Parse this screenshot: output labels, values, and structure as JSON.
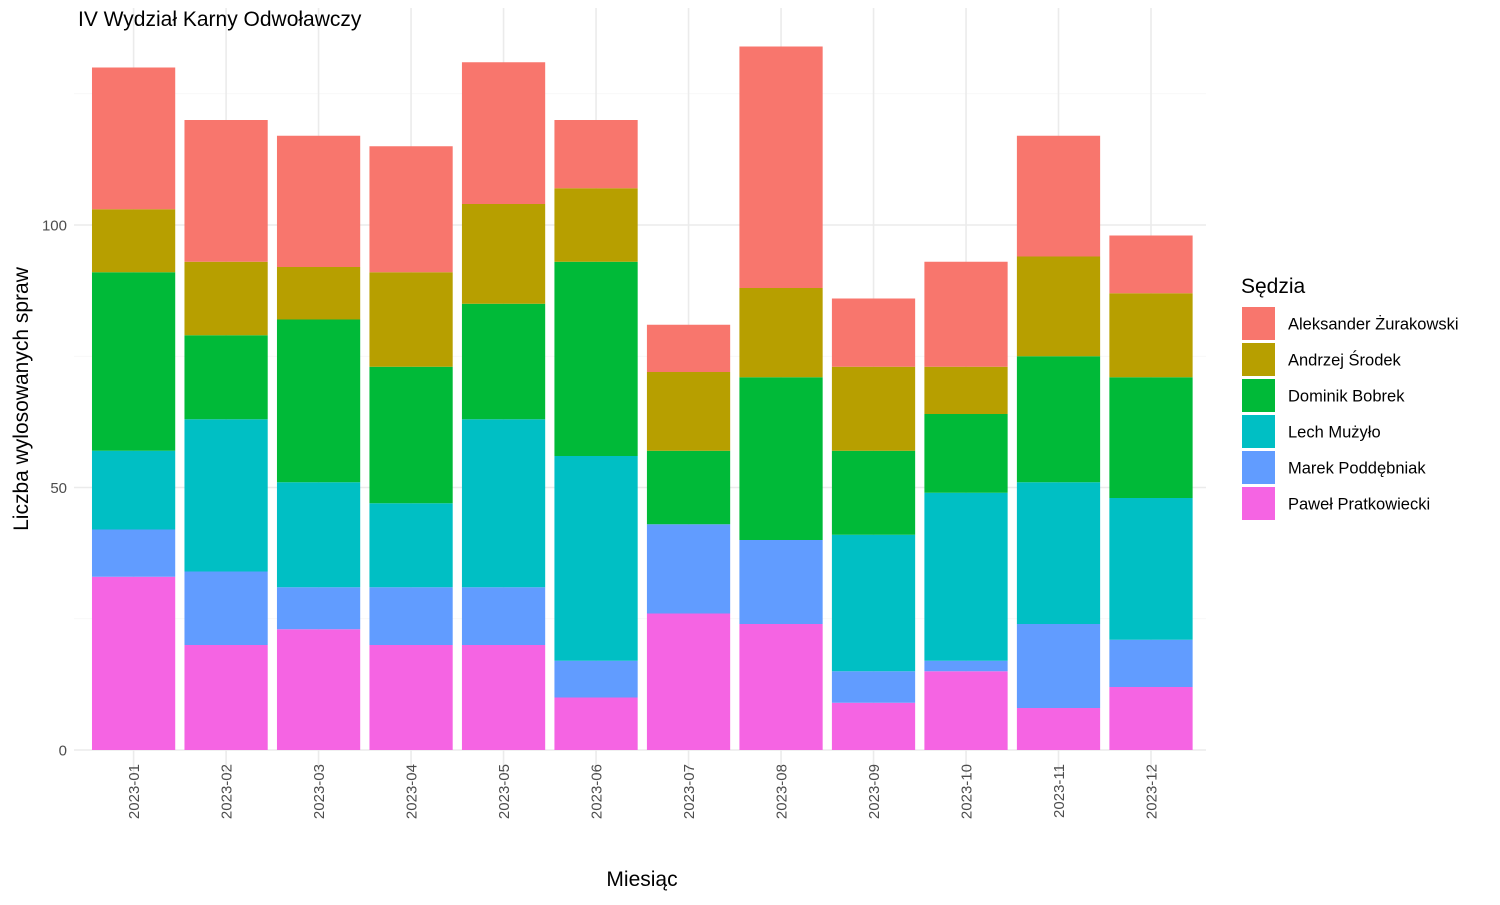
{
  "chart_data": {
    "type": "bar",
    "stacked": true,
    "title": "IV Wydział Karny Odwoławczy",
    "xlabel": "Miesiąc",
    "ylabel": "Liczba wylosowanych spraw",
    "ylim": [
      0,
      138
    ],
    "yticks": [
      0,
      50,
      100
    ],
    "grid": true,
    "legend_title": "Sędzia",
    "legend_position": "right",
    "categories": [
      "2023-01",
      "2023-02",
      "2023-03",
      "2023-04",
      "2023-05",
      "2023-06",
      "2023-07",
      "2023-08",
      "2023-09",
      "2023-10",
      "2023-11",
      "2023-12"
    ],
    "series": [
      {
        "name": "Paweł Pratkowiecki",
        "color": "#F564E3",
        "values": [
          33,
          20,
          23,
          20,
          20,
          10,
          26,
          24,
          9,
          15,
          8,
          12
        ]
      },
      {
        "name": "Marek Poddębniak",
        "color": "#619CFF",
        "values": [
          9,
          14,
          8,
          11,
          11,
          7,
          17,
          16,
          6,
          2,
          16,
          9
        ]
      },
      {
        "name": "Lech Mużyło",
        "color": "#00BFC4",
        "values": [
          15,
          29,
          20,
          16,
          32,
          39,
          0,
          0,
          26,
          32,
          27,
          27
        ]
      },
      {
        "name": "Dominik Bobrek",
        "color": "#00BA38",
        "values": [
          34,
          16,
          31,
          26,
          22,
          37,
          14,
          31,
          16,
          15,
          24,
          23
        ]
      },
      {
        "name": "Andrzej Środek",
        "color": "#B79F00",
        "values": [
          12,
          14,
          10,
          18,
          19,
          14,
          15,
          17,
          16,
          9,
          19,
          16
        ]
      },
      {
        "name": "Aleksander Żurakowski",
        "color": "#F8766D",
        "values": [
          27,
          27,
          25,
          24,
          27,
          13,
          9,
          46,
          13,
          20,
          23,
          11
        ]
      }
    ],
    "legend_order": [
      "Aleksander Żurakowski",
      "Andrzej Środek",
      "Dominik Bobrek",
      "Lech Mużyło",
      "Marek Poddębniak",
      "Paweł Pratkowiecki"
    ]
  }
}
